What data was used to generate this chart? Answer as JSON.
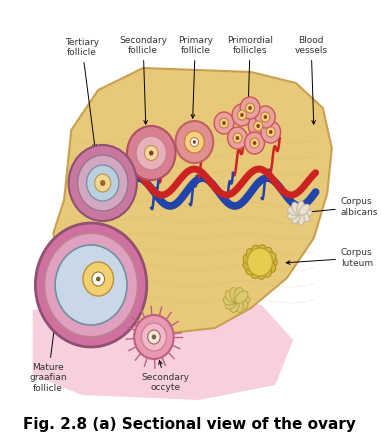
{
  "title": "Fig. 2.8 (a) Sectional view of the ovary",
  "title_fontsize": 11,
  "title_fontstyle": "bold",
  "bg_color": "#ffffff",
  "labels": {
    "tertiary_follicle": "Tertiary\nfollicle",
    "secondary_follicle": "Secondary\nfollicle",
    "primary_follicle": "Primary\nfollicle",
    "primordial_follicles": "Primordial\nfollicles",
    "blood_vessels": "Blood\nvessels",
    "corpus_albicans": "Corpus\nalbicans",
    "corpus_luteum": "Corpus\nluteum",
    "mature_graafian": "Mature\ngraafian\nfollicle",
    "secondary_oocyte": "Secondary\noccyte"
  },
  "ovary_color": "#e8c97a",
  "ovary_edge": "#c8a050",
  "blood_red": "#cc2222",
  "blood_blue": "#2244aa"
}
